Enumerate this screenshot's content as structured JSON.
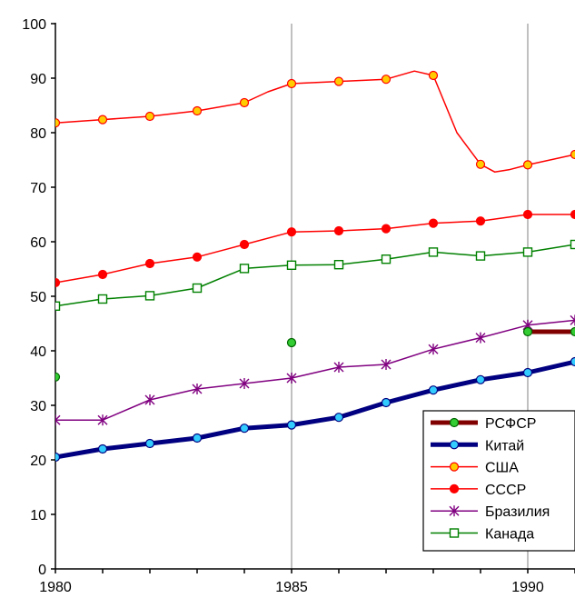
{
  "chart_data": {
    "type": "line",
    "title": "",
    "xlabel": "",
    "ylabel": "",
    "xlim": [
      1980,
      1991.2
    ],
    "ylim": [
      0,
      100
    ],
    "x_ticks": [
      1980,
      1985,
      1990
    ],
    "y_ticks": [
      0,
      10,
      20,
      30,
      40,
      50,
      60,
      70,
      80,
      90,
      100
    ],
    "grid": "vertical lines at x ticks",
    "legend_position": "bottom-right",
    "series": [
      {
        "name": "РСФСР",
        "color": "#800000",
        "line_width": 5,
        "marker": "circle",
        "marker_fill": "#33cc33",
        "marker_stroke": "#006600",
        "points": [
          [
            1980,
            35.2
          ],
          [
            1985,
            41.5
          ],
          [
            1990,
            43.5
          ],
          [
            1991,
            43.5
          ]
        ],
        "line_segments": [
          [
            [
              1990,
              43.5
            ],
            [
              1991,
              43.5
            ],
            [
              1991.2,
              43.5
            ]
          ]
        ]
      },
      {
        "name": "Китай",
        "color": "#000080",
        "line_width": 5,
        "marker": "circle",
        "marker_fill": "#33ccff",
        "marker_stroke": "#000080",
        "points": [
          [
            1980,
            20.5
          ],
          [
            1981,
            22.0
          ],
          [
            1982,
            23.0
          ],
          [
            1983,
            24.0
          ],
          [
            1984,
            25.8
          ],
          [
            1985,
            26.4
          ],
          [
            1986,
            27.8
          ],
          [
            1987,
            30.5
          ],
          [
            1988,
            32.8
          ],
          [
            1989,
            34.7
          ],
          [
            1990,
            36.0
          ],
          [
            1991,
            38.0
          ]
        ],
        "line_segments": [
          [
            [
              1980,
              20.5
            ],
            [
              1981,
              22.0
            ],
            [
              1982,
              23.0
            ],
            [
              1983,
              24.0
            ],
            [
              1984,
              25.8
            ],
            [
              1985,
              26.4
            ],
            [
              1986,
              27.8
            ],
            [
              1987,
              30.5
            ],
            [
              1988,
              32.8
            ],
            [
              1989,
              34.7
            ],
            [
              1990,
              36.0
            ],
            [
              1991,
              38.0
            ],
            [
              1991.2,
              38.4
            ]
          ]
        ]
      },
      {
        "name": "США",
        "color": "#ff0000",
        "line_width": 1.5,
        "marker": "circle",
        "marker_fill": "#ffcc00",
        "marker_stroke": "#ff0000",
        "points": [
          [
            1980,
            81.8
          ],
          [
            1981,
            82.4
          ],
          [
            1982,
            83.0
          ],
          [
            1983,
            84.0
          ],
          [
            1984,
            85.5
          ],
          [
            1985,
            89.0
          ],
          [
            1986,
            89.4
          ],
          [
            1987,
            89.8
          ],
          [
            1988,
            90.5
          ],
          [
            1989,
            74.2
          ],
          [
            1990,
            74.1
          ],
          [
            1991,
            76.0
          ]
        ],
        "line_segments": [
          [
            [
              1980,
              81.8
            ],
            [
              1981,
              82.4
            ],
            [
              1982,
              83.0
            ],
            [
              1983,
              84.0
            ],
            [
              1984,
              85.5
            ],
            [
              1984.5,
              87.5
            ],
            [
              1985,
              89.0
            ],
            [
              1986,
              89.4
            ],
            [
              1987,
              89.8
            ],
            [
              1987.6,
              91.3
            ],
            [
              1988,
              90.5
            ],
            [
              1988.5,
              80.0
            ],
            [
              1989,
              74.2
            ],
            [
              1989.3,
              72.8
            ],
            [
              1989.6,
              73.2
            ],
            [
              1990,
              74.1
            ],
            [
              1991,
              76.0
            ],
            [
              1991.2,
              76.2
            ]
          ]
        ]
      },
      {
        "name": "СССР",
        "color": "#ff0000",
        "line_width": 1.5,
        "marker": "circle",
        "marker_fill": "#ff0000",
        "marker_stroke": "#ff0000",
        "points": [
          [
            1980,
            52.5
          ],
          [
            1981,
            54.0
          ],
          [
            1982,
            56.0
          ],
          [
            1983,
            57.2
          ],
          [
            1984,
            59.5
          ],
          [
            1985,
            61.8
          ],
          [
            1986,
            62.0
          ],
          [
            1987,
            62.4
          ],
          [
            1988,
            63.4
          ],
          [
            1989,
            63.8
          ],
          [
            1990,
            65.0
          ],
          [
            1991,
            65.0
          ]
        ],
        "line_segments": [
          [
            [
              1980,
              52.5
            ],
            [
              1981,
              54.0
            ],
            [
              1982,
              56.0
            ],
            [
              1983,
              57.2
            ],
            [
              1984,
              59.5
            ],
            [
              1985,
              61.8
            ],
            [
              1986,
              62.0
            ],
            [
              1987,
              62.4
            ],
            [
              1988,
              63.4
            ],
            [
              1989,
              63.8
            ],
            [
              1990,
              65.0
            ],
            [
              1991,
              65.0
            ],
            [
              1991.2,
              65.0
            ]
          ]
        ]
      },
      {
        "name": "Бразилия",
        "color": "#800080",
        "line_width": 1.5,
        "marker": "asterisk",
        "marker_fill": "none",
        "marker_stroke": "#800080",
        "points": [
          [
            1980,
            27.3
          ],
          [
            1981,
            27.3
          ],
          [
            1982,
            31.0
          ],
          [
            1983,
            33.0
          ],
          [
            1984,
            34.0
          ],
          [
            1985,
            35.0
          ],
          [
            1986,
            37.0
          ],
          [
            1987,
            37.5
          ],
          [
            1988,
            40.3
          ],
          [
            1989,
            42.4
          ],
          [
            1990,
            44.7
          ],
          [
            1991,
            45.6
          ]
        ],
        "line_segments": [
          [
            [
              1980,
              27.3
            ],
            [
              1981,
              27.3
            ],
            [
              1982,
              31.0
            ],
            [
              1983,
              33.0
            ],
            [
              1984,
              34.0
            ],
            [
              1985,
              35.0
            ],
            [
              1986,
              37.0
            ],
            [
              1987,
              37.5
            ],
            [
              1988,
              40.3
            ],
            [
              1989,
              42.4
            ],
            [
              1990,
              44.7
            ],
            [
              1991,
              45.6
            ],
            [
              1991.2,
              45.7
            ]
          ]
        ]
      },
      {
        "name": "Канада",
        "color": "#008000",
        "line_width": 1.5,
        "marker": "square",
        "marker_fill": "#ffffff",
        "marker_stroke": "#008000",
        "points": [
          [
            1980,
            48.2
          ],
          [
            1981,
            49.5
          ],
          [
            1982,
            50.1
          ],
          [
            1983,
            51.5
          ],
          [
            1984,
            55.1
          ],
          [
            1985,
            55.7
          ],
          [
            1986,
            55.8
          ],
          [
            1987,
            56.8
          ],
          [
            1988,
            58.1
          ],
          [
            1989,
            57.4
          ],
          [
            1990,
            58.1
          ],
          [
            1991,
            59.5
          ]
        ],
        "line_segments": [
          [
            [
              1980,
              48.2
            ],
            [
              1981,
              49.5
            ],
            [
              1982,
              50.1
            ],
            [
              1983,
              51.5
            ],
            [
              1984,
              55.1
            ],
            [
              1985,
              55.7
            ],
            [
              1986,
              55.8
            ],
            [
              1987,
              56.8
            ],
            [
              1988,
              58.1
            ],
            [
              1989,
              57.4
            ],
            [
              1990,
              58.1
            ],
            [
              1991,
              59.5
            ],
            [
              1991.2,
              59.6
            ]
          ]
        ]
      }
    ]
  }
}
